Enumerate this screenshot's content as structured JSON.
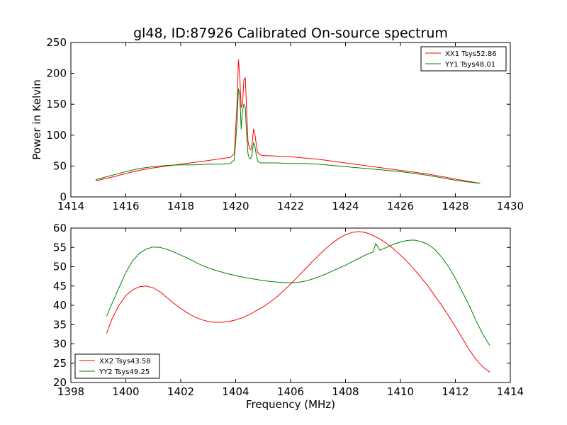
{
  "figure": {
    "title": "gl48, ID:87926 Calibrated On-source spectrum",
    "line_colors": {
      "red": "#ff0000",
      "green": "#008000"
    }
  },
  "chart_data": [
    {
      "type": "line",
      "title": "gl48, ID:87926 Calibrated On-source spectrum",
      "xlabel": "",
      "ylabel": "Power in Kelvin",
      "xlim": [
        1414,
        1430
      ],
      "ylim": [
        0,
        250
      ],
      "xticks": [
        1414,
        1416,
        1418,
        1420,
        1422,
        1424,
        1426,
        1428,
        1430
      ],
      "yticks": [
        0,
        50,
        100,
        150,
        200,
        250
      ],
      "grid": false,
      "legend": "top-right",
      "series": [
        {
          "name": "XX1 Tsys52.86",
          "color": "#ff0000",
          "x": [
            1414.9,
            1415.5,
            1416.0,
            1416.5,
            1417.0,
            1417.5,
            1418.0,
            1418.5,
            1419.0,
            1419.5,
            1419.8,
            1419.95,
            1420.05,
            1420.1,
            1420.15,
            1420.2,
            1420.25,
            1420.3,
            1420.35,
            1420.4,
            1420.45,
            1420.5,
            1420.55,
            1420.6,
            1420.65,
            1420.7,
            1420.75,
            1420.8,
            1420.9,
            1421.0,
            1421.5,
            1422.0,
            1422.5,
            1423.0,
            1423.5,
            1424.0,
            1424.5,
            1425.0,
            1425.5,
            1426.0,
            1426.5,
            1427.0,
            1427.5,
            1428.0,
            1428.5,
            1428.9
          ],
          "y": [
            26,
            32,
            38,
            43,
            47,
            50,
            53,
            56,
            59,
            62,
            64,
            70,
            150,
            222,
            195,
            145,
            150,
            190,
            193,
            140,
            90,
            78,
            76,
            85,
            110,
            102,
            85,
            72,
            68,
            67,
            66,
            65,
            63,
            61,
            58,
            55,
            52,
            49,
            46,
            43,
            40,
            37,
            33,
            29,
            25,
            22
          ]
        },
        {
          "name": "YY1 Tsys48.01",
          "color": "#008000",
          "x": [
            1414.9,
            1415.5,
            1416.0,
            1416.5,
            1417.0,
            1417.5,
            1418.0,
            1418.5,
            1419.0,
            1419.5,
            1419.8,
            1419.95,
            1420.05,
            1420.1,
            1420.15,
            1420.2,
            1420.25,
            1420.3,
            1420.35,
            1420.4,
            1420.45,
            1420.5,
            1420.55,
            1420.6,
            1420.65,
            1420.7,
            1420.75,
            1420.8,
            1420.9,
            1421.0,
            1421.5,
            1422.0,
            1422.5,
            1423.0,
            1423.5,
            1424.0,
            1424.5,
            1425.0,
            1425.5,
            1426.0,
            1426.5,
            1427.0,
            1427.5,
            1428.0,
            1428.5,
            1428.9
          ],
          "y": [
            28,
            35,
            41,
            46,
            49,
            51,
            52,
            52,
            53,
            53,
            54,
            60,
            120,
            175,
            165,
            110,
            140,
            150,
            145,
            100,
            70,
            62,
            62,
            70,
            88,
            82,
            68,
            58,
            55,
            55,
            55,
            54,
            54,
            53,
            51,
            49,
            47,
            45,
            43,
            41,
            38,
            35,
            31,
            27,
            24,
            22
          ]
        }
      ]
    },
    {
      "type": "line",
      "title": "",
      "xlabel": "Frequency (MHz)",
      "ylabel": "",
      "xlim": [
        1398,
        1414
      ],
      "ylim": [
        20,
        60
      ],
      "xticks": [
        1398,
        1400,
        1402,
        1404,
        1406,
        1408,
        1410,
        1412,
        1414
      ],
      "yticks": [
        20,
        25,
        30,
        35,
        40,
        45,
        50,
        55,
        60
      ],
      "grid": false,
      "legend": "bottom-left",
      "series": [
        {
          "name": "XX2 Tsys43.58",
          "color": "#ff0000",
          "x": [
            1399.3,
            1399.5,
            1399.75,
            1400.0,
            1400.25,
            1400.5,
            1400.75,
            1401.0,
            1401.25,
            1401.5,
            1401.75,
            1402.0,
            1402.25,
            1402.5,
            1402.75,
            1403.0,
            1403.25,
            1403.5,
            1403.75,
            1404.0,
            1404.25,
            1404.5,
            1404.75,
            1405.0,
            1405.25,
            1405.5,
            1405.75,
            1406.0,
            1406.25,
            1406.5,
            1406.75,
            1407.0,
            1407.25,
            1407.5,
            1407.75,
            1408.0,
            1408.25,
            1408.5,
            1408.75,
            1409.0,
            1409.25,
            1409.5,
            1409.75,
            1410.0,
            1410.25,
            1410.5,
            1410.75,
            1411.0,
            1411.25,
            1411.5,
            1411.75,
            1412.0,
            1412.25,
            1412.5,
            1412.75,
            1413.0,
            1413.25
          ],
          "y": [
            32.7,
            36.5,
            40.0,
            42.5,
            44.0,
            44.8,
            45.0,
            44.5,
            43.5,
            42.0,
            40.5,
            39.2,
            38.0,
            37.0,
            36.3,
            35.8,
            35.6,
            35.6,
            35.8,
            36.2,
            36.8,
            37.6,
            38.6,
            39.6,
            40.8,
            42.2,
            43.8,
            45.5,
            47.3,
            49.2,
            51.0,
            52.8,
            54.5,
            56.0,
            57.3,
            58.3,
            58.9,
            59.1,
            58.8,
            58.1,
            57.2,
            56.0,
            54.6,
            53.0,
            51.3,
            49.3,
            47.2,
            45.0,
            42.5,
            40.0,
            37.3,
            34.5,
            31.5,
            28.5,
            26.0,
            24.0,
            22.7
          ]
        },
        {
          "name": "YY2 Tsys49.25",
          "color": "#008000",
          "x": [
            1399.3,
            1399.5,
            1399.75,
            1400.0,
            1400.25,
            1400.5,
            1400.75,
            1401.0,
            1401.25,
            1401.5,
            1401.75,
            1402.0,
            1402.25,
            1402.5,
            1402.75,
            1403.0,
            1403.25,
            1403.5,
            1403.75,
            1404.0,
            1404.25,
            1404.5,
            1404.75,
            1405.0,
            1405.25,
            1405.5,
            1405.75,
            1406.0,
            1406.25,
            1406.5,
            1406.75,
            1407.0,
            1407.25,
            1407.5,
            1407.75,
            1408.0,
            1408.25,
            1408.5,
            1408.75,
            1409.0,
            1409.1,
            1409.25,
            1409.5,
            1409.75,
            1410.0,
            1410.25,
            1410.5,
            1410.75,
            1411.0,
            1411.25,
            1411.5,
            1411.75,
            1412.0,
            1412.25,
            1412.5,
            1412.75,
            1413.0,
            1413.25
          ],
          "y": [
            37.2,
            40.5,
            44.5,
            48.5,
            51.5,
            53.5,
            54.6,
            55.1,
            55.0,
            54.5,
            53.8,
            53.0,
            52.2,
            51.3,
            50.4,
            49.7,
            49.1,
            48.6,
            48.1,
            47.7,
            47.3,
            47.0,
            46.7,
            46.4,
            46.2,
            46.0,
            45.9,
            45.8,
            45.9,
            46.2,
            46.7,
            47.3,
            48.0,
            48.8,
            49.6,
            50.4,
            51.3,
            52.2,
            53.1,
            53.8,
            56.0,
            54.3,
            55.0,
            55.8,
            56.4,
            56.8,
            56.9,
            56.5,
            55.8,
            54.5,
            52.5,
            50.0,
            47.0,
            43.5,
            40.0,
            36.0,
            32.5,
            29.6
          ]
        }
      ]
    }
  ]
}
